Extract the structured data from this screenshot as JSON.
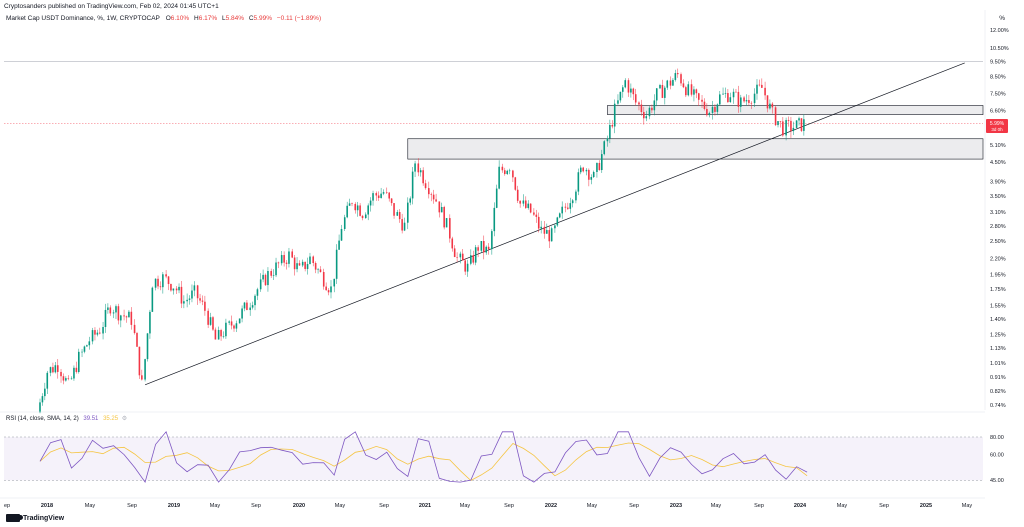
{
  "header": {
    "publisher": "Cryptosanders published on TradingView.com, Feb 02, 2024 01:45 UTC+1",
    "symbol": "Market Cap USDT Dominance, %, 1W, CRYPTOCAP",
    "ohlc": [
      {
        "k": "O",
        "v": "6.10%"
      },
      {
        "k": "H",
        "v": "6.17%"
      },
      {
        "k": "L",
        "v": "5.84%"
      },
      {
        "k": "C",
        "v": "5.99%"
      }
    ],
    "change": "−0.11 (−1.89%)",
    "axis_unit": "%"
  },
  "rsi": {
    "label": "RSI (14, close, SMA, 14, 2)",
    "rsi_value": "39.51",
    "sma_value": "35.25"
  },
  "price_tag": {
    "value": "5.99%",
    "countdown": "3d 0h"
  },
  "footer": {
    "brand": "TradingView"
  },
  "colors": {
    "up": "#089981",
    "down": "#f23645",
    "rsi": "#7e57c2",
    "rsi_sma": "#f5c542",
    "zone_fill": "#d1d4dc",
    "trendline": "#131722",
    "price_tag": "#f23645"
  },
  "chart_data": {
    "type": "candlestick",
    "title": "Market Cap USDT Dominance, %, 1W, CRYPTOCAP",
    "y_scale": "log",
    "y_ticks": [
      "12.00%",
      "10.50%",
      "9.50%",
      "8.50%",
      "7.50%",
      "6.60%",
      "5.10%",
      "4.50%",
      "3.90%",
      "3.50%",
      "3.10%",
      "2.80%",
      "2.50%",
      "2.20%",
      "1.95%",
      "1.75%",
      "1.55%",
      "1.40%",
      "1.25%",
      "1.13%",
      "1.01%",
      "0.91%",
      "0.82%",
      "0.74%"
    ],
    "x_ticks": [
      "ep",
      "2018",
      "May",
      "Sep",
      "2019",
      "May",
      "Sep",
      "2020",
      "May",
      "Sep",
      "2021",
      "May",
      "Sep",
      "2022",
      "May",
      "Sep",
      "2023",
      "May",
      "Sep",
      "2024",
      "May",
      "Sep",
      "2025",
      "May"
    ],
    "series_close": [
      {
        "t": "2018-01",
        "v": 0.7
      },
      {
        "t": "2018-02",
        "v": 0.95
      },
      {
        "t": "2018-03",
        "v": 1.0
      },
      {
        "t": "2018-04",
        "v": 0.85
      },
      {
        "t": "2018-05",
        "v": 1.05
      },
      {
        "t": "2018-06",
        "v": 1.2
      },
      {
        "t": "2018-07",
        "v": 1.3
      },
      {
        "t": "2018-08",
        "v": 1.55
      },
      {
        "t": "2018-09",
        "v": 1.45
      },
      {
        "t": "2018-10",
        "v": 1.4
      },
      {
        "t": "2018-11",
        "v": 0.86
      },
      {
        "t": "2018-12",
        "v": 1.85
      },
      {
        "t": "2019-01",
        "v": 1.9
      },
      {
        "t": "2019-02",
        "v": 1.8
      },
      {
        "t": "2019-03",
        "v": 1.6
      },
      {
        "t": "2019-04",
        "v": 1.7
      },
      {
        "t": "2019-05",
        "v": 1.5
      },
      {
        "t": "2019-06",
        "v": 1.2
      },
      {
        "t": "2019-07",
        "v": 1.3
      },
      {
        "t": "2019-08",
        "v": 1.4
      },
      {
        "t": "2019-09",
        "v": 1.55
      },
      {
        "t": "2019-10",
        "v": 1.75
      },
      {
        "t": "2019-11",
        "v": 1.95
      },
      {
        "t": "2019-12",
        "v": 2.1
      },
      {
        "t": "2020-01",
        "v": 2.25
      },
      {
        "t": "2020-02",
        "v": 2.0
      },
      {
        "t": "2020-03",
        "v": 2.2
      },
      {
        "t": "2020-04",
        "v": 1.95
      },
      {
        "t": "2020-05",
        "v": 1.75
      },
      {
        "t": "2020-06",
        "v": 2.8
      },
      {
        "t": "2020-07",
        "v": 3.4
      },
      {
        "t": "2020-08",
        "v": 3.1
      },
      {
        "t": "2020-09",
        "v": 3.5
      },
      {
        "t": "2020-10",
        "v": 3.6
      },
      {
        "t": "2020-11",
        "v": 3.1
      },
      {
        "t": "2020-12",
        "v": 2.8
      },
      {
        "t": "2021-01",
        "v": 4.5
      },
      {
        "t": "2021-02",
        "v": 3.9
      },
      {
        "t": "2021-03",
        "v": 3.4
      },
      {
        "t": "2021-04",
        "v": 2.8
      },
      {
        "t": "2021-05",
        "v": 2.2
      },
      {
        "t": "2021-06",
        "v": 2.05
      },
      {
        "t": "2021-07",
        "v": 2.4
      },
      {
        "t": "2021-08",
        "v": 2.3
      },
      {
        "t": "2021-09",
        "v": 4.2
      },
      {
        "t": "2021-10",
        "v": 4.4
      },
      {
        "t": "2021-11",
        "v": 3.3
      },
      {
        "t": "2021-12",
        "v": 3.1
      },
      {
        "t": "2022-01",
        "v": 2.7
      },
      {
        "t": "2022-02",
        "v": 2.6
      },
      {
        "t": "2022-03",
        "v": 3.1
      },
      {
        "t": "2022-04",
        "v": 3.6
      },
      {
        "t": "2022-05",
        "v": 4.4
      },
      {
        "t": "2022-06",
        "v": 4.0
      },
      {
        "t": "2022-07",
        "v": 5.0
      },
      {
        "t": "2022-08",
        "v": 6.6
      },
      {
        "t": "2022-09",
        "v": 8.2
      },
      {
        "t": "2022-10",
        "v": 7.0
      },
      {
        "t": "2022-11",
        "v": 6.4
      },
      {
        "t": "2022-12",
        "v": 7.4
      },
      {
        "t": "2023-01",
        "v": 8.0
      },
      {
        "t": "2023-02",
        "v": 8.6
      },
      {
        "t": "2023-03",
        "v": 7.6
      },
      {
        "t": "2023-04",
        "v": 7.0
      },
      {
        "t": "2023-05",
        "v": 6.6
      },
      {
        "t": "2023-06",
        "v": 7.3
      },
      {
        "t": "2023-07",
        "v": 7.5
      },
      {
        "t": "2023-08",
        "v": 7.0
      },
      {
        "t": "2023-09",
        "v": 7.4
      },
      {
        "t": "2023-10",
        "v": 7.8
      },
      {
        "t": "2023-11",
        "v": 6.4
      },
      {
        "t": "2023-12",
        "v": 5.8
      },
      {
        "t": "2024-01",
        "v": 5.85
      },
      {
        "t": "2024-02",
        "v": 5.99
      }
    ],
    "support_zones": [
      {
        "low": 6.4,
        "high": 6.85,
        "from": "2022-07",
        "to": "2025-05"
      },
      {
        "low": 4.6,
        "high": 5.35,
        "from": "2020-12",
        "to": "2025-05"
      }
    ],
    "trendline": {
      "from": {
        "t": "2018-11",
        "v": 0.86
      },
      "to": {
        "t": "2025-05",
        "v": 9.4
      }
    },
    "horizontal_line": 9.5,
    "rsi_levels": [
      80.0,
      60.0,
      45.0
    ],
    "rsi_last": 39.51,
    "rsi_sma_last": 35.25
  }
}
